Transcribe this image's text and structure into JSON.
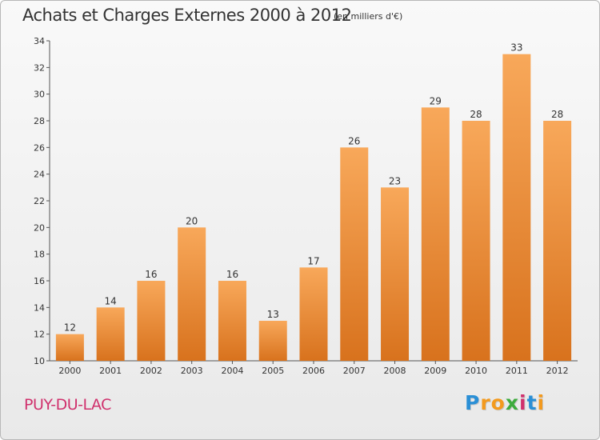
{
  "header": {
    "title": "Achats et Charges Externes 2000 à 2012",
    "unit": "(en milliers d'€)"
  },
  "footer": {
    "commune": "PUY-DU-LAC",
    "logo_letters": [
      {
        "char": "P",
        "color": "#2a8fd6"
      },
      {
        "char": "r",
        "color": "#f39a1e"
      },
      {
        "char": "o",
        "color": "#f39a1e"
      },
      {
        "char": "x",
        "color": "#3cab3c"
      },
      {
        "char": "i",
        "color": "#d0306c"
      },
      {
        "char": "t",
        "color": "#2a8fd6"
      },
      {
        "char": "i",
        "color": "#f39a1e"
      }
    ]
  },
  "colors": {
    "bar_light": "#f8a85a",
    "bar_dark": "#d8721d",
    "axis": "#555555",
    "grid": "#cccccc"
  },
  "chart_data": {
    "type": "bar",
    "categories": [
      "2000",
      "2001",
      "2002",
      "2003",
      "2004",
      "2005",
      "2006",
      "2007",
      "2008",
      "2009",
      "2010",
      "2011",
      "2012"
    ],
    "values": [
      12,
      14,
      16,
      20,
      16,
      13,
      17,
      26,
      23,
      29,
      28,
      33,
      28
    ],
    "data_labels": [
      "12",
      "14",
      "16",
      "20",
      "16",
      "13",
      "17",
      "26",
      "23",
      "29",
      "28",
      "33",
      "28"
    ],
    "yticks": [
      "10",
      "12",
      "14",
      "16",
      "18",
      "20",
      "22",
      "24",
      "26",
      "28",
      "30",
      "32",
      "34"
    ],
    "ylim": [
      10,
      34
    ],
    "grid": false,
    "legend": "none"
  }
}
